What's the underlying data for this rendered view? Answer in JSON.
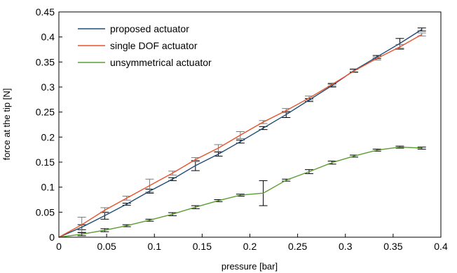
{
  "chart_data": {
    "type": "line",
    "title": "",
    "xlabel": "pressure [bar]",
    "ylabel": "force at the tip [N]",
    "xlim": [
      0,
      0.4
    ],
    "ylim": [
      0,
      0.45
    ],
    "xticks": [
      "0",
      "0.05",
      "0.1",
      "0.15",
      "0.2",
      "0.25",
      "0.3",
      "0.35",
      "0.4"
    ],
    "yticks": [
      "0",
      "0.05",
      "0.1",
      "0.15",
      "0.2",
      "0.25",
      "0.3",
      "0.35",
      "0.4",
      "0.45"
    ],
    "grid": false,
    "legend_position": "top-left",
    "series": [
      {
        "name": "proposed actuator",
        "color": "#1f4e79",
        "x": [
          0,
          0.024,
          0.048,
          0.071,
          0.095,
          0.119,
          0.143,
          0.167,
          0.19,
          0.214,
          0.238,
          0.262,
          0.286,
          0.309,
          0.333,
          0.357,
          0.38
        ],
        "y": [
          0,
          0.02,
          0.043,
          0.066,
          0.092,
          0.116,
          0.143,
          0.166,
          0.191,
          0.218,
          0.245,
          0.274,
          0.303,
          0.333,
          0.36,
          0.387,
          0.415
        ],
        "err": [
          0,
          0.005,
          0.007,
          0.002,
          0.004,
          0.003,
          0.01,
          0.004,
          0.003,
          0.003,
          0.006,
          0.003,
          0.003,
          0.003,
          0.003,
          0.01,
          0.003
        ]
      },
      {
        "name": "single DOF actuator",
        "color": "#e8522a",
        "x": [
          0,
          0.024,
          0.048,
          0.071,
          0.095,
          0.119,
          0.143,
          0.167,
          0.19,
          0.214,
          0.238,
          0.262,
          0.286,
          0.309,
          0.333,
          0.357,
          0.38
        ],
        "y": [
          0,
          0.025,
          0.054,
          0.078,
          0.103,
          0.128,
          0.155,
          0.178,
          0.204,
          0.23,
          0.253,
          0.278,
          0.305,
          0.332,
          0.357,
          0.38,
          0.405
        ],
        "err": [
          0,
          0.015,
          0.005,
          0.004,
          0.013,
          0.004,
          0.004,
          0.007,
          0.007,
          0.003,
          0.004,
          0.004,
          0.003,
          0.003,
          0.003,
          0.005,
          0.003
        ]
      },
      {
        "name": "unsymmetrical actuator",
        "color": "#5a9e32",
        "x": [
          0,
          0.024,
          0.048,
          0.071,
          0.095,
          0.119,
          0.143,
          0.167,
          0.19,
          0.214,
          0.238,
          0.262,
          0.286,
          0.309,
          0.333,
          0.357,
          0.38
        ],
        "y": [
          0,
          0.006,
          0.014,
          0.023,
          0.034,
          0.046,
          0.06,
          0.073,
          0.084,
          0.088,
          0.114,
          0.131,
          0.149,
          0.162,
          0.174,
          0.18,
          0.178
        ],
        "err": [
          0,
          0.003,
          0.003,
          0.002,
          0.002,
          0.003,
          0.003,
          0.002,
          0.002,
          0.025,
          0.002,
          0.004,
          0.003,
          0.002,
          0.002,
          0.002,
          0.002
        ]
      }
    ]
  }
}
